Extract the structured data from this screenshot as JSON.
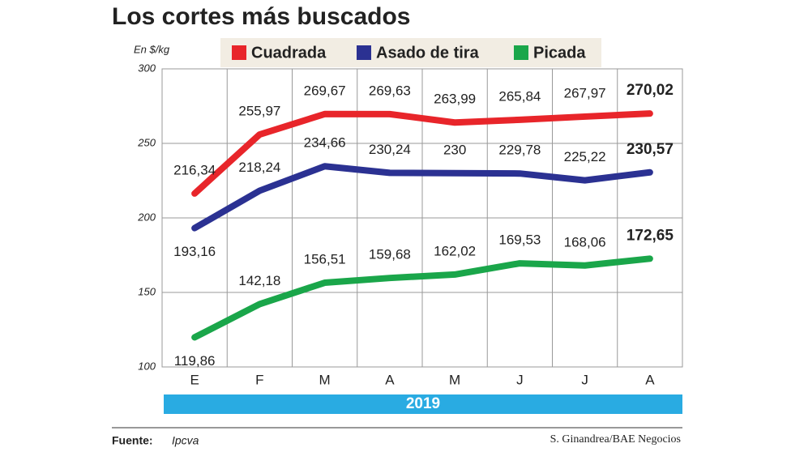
{
  "chart_data": {
    "type": "line",
    "title": "Los cortes más buscados",
    "y_label": "En $/kg",
    "x_label": "2019",
    "source_label": "Fuente:",
    "source": "Ipcva",
    "credit": "S. Ginandrea/BAE Negocios",
    "categories": [
      "E",
      "F",
      "M",
      "A",
      "M",
      "J",
      "J",
      "A"
    ],
    "ylim": [
      100,
      300
    ],
    "yticks": [
      100,
      150,
      200,
      250,
      300
    ],
    "grid": true,
    "series": [
      {
        "name": "Cuadrada",
        "color": "#e8252a",
        "values": [
          216.34,
          255.97,
          269.67,
          269.63,
          263.99,
          265.84,
          267.97,
          270.02
        ],
        "value_labels": [
          "216,34",
          "255,97",
          "269,67",
          "269,63",
          "263,99",
          "265,84",
          "267,97",
          "270,02"
        ]
      },
      {
        "name": "Asado de tira",
        "color": "#2b3192",
        "values": [
          193.16,
          218.24,
          234.66,
          230.24,
          230,
          229.78,
          225.22,
          230.57
        ],
        "value_labels": [
          "193,16",
          "218,24",
          "234,66",
          "230,24",
          "230",
          "229,78",
          "225,22",
          "230,57"
        ]
      },
      {
        "name": "Picada",
        "color": "#1aa64a",
        "values": [
          119.86,
          142.18,
          156.51,
          159.68,
          162.02,
          169.53,
          168.06,
          172.65
        ],
        "value_labels": [
          "119,86",
          "142,18",
          "156,51",
          "159,68",
          "162,02",
          "169,53",
          "168,06",
          "172,65"
        ]
      }
    ]
  }
}
